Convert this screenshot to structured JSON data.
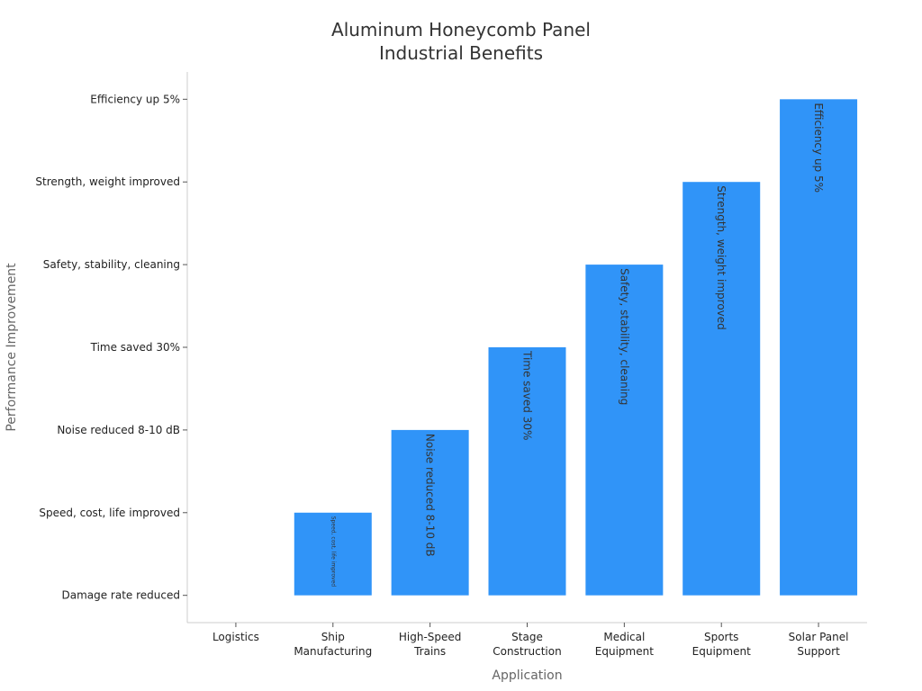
{
  "chart_data": {
    "type": "bar",
    "title": [
      "Aluminum Honeycomb Panel",
      "Industrial Benefits"
    ],
    "xlabel": "Application",
    "ylabel": "Performance Improvement",
    "categories": [
      [
        "Logistics"
      ],
      [
        "Ship",
        "Manufacturing"
      ],
      [
        "High-Speed",
        "Trains"
      ],
      [
        "Stage",
        "Construction"
      ],
      [
        "Medical",
        "Equipment"
      ],
      [
        "Sports",
        "Equipment"
      ],
      [
        "Solar Panel",
        "Support"
      ]
    ],
    "y_levels": [
      "Damage rate reduced",
      "Speed, cost, life improved",
      "Noise reduced 8-10 dB",
      "Time saved 30%",
      "Safety, stability, cleaning",
      "Strength, weight improved",
      "Efficiency up 5%"
    ],
    "values": [
      0,
      1,
      2,
      3,
      4,
      5,
      6
    ],
    "data_labels": [
      "",
      "Speed, cost, life improved",
      "Noise reduced 8-10 dB",
      "Time saved 30%",
      "Safety, stability, cleaning",
      "Strength, weight improved",
      "Efficiency up 5%"
    ],
    "ylim": [
      -0.33,
      6.33
    ],
    "bar_color": "#3094f8",
    "grid": false,
    "legend": "none"
  }
}
